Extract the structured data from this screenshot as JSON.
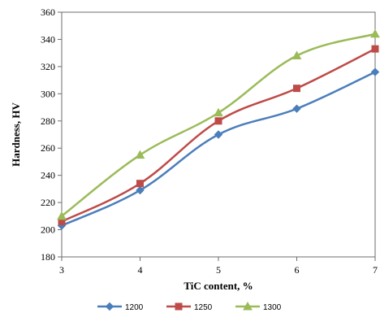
{
  "chart_data": {
    "type": "line",
    "x": [
      3,
      4,
      5,
      6,
      7
    ],
    "xlabel": "TiC content, %",
    "ylabel": "Hardness, HV",
    "xlim": [
      3,
      7
    ],
    "ylim": [
      180,
      360
    ],
    "x_ticks": [
      3,
      4,
      5,
      6,
      7
    ],
    "y_ticks": [
      180,
      200,
      220,
      240,
      260,
      280,
      300,
      320,
      340,
      360
    ],
    "grid": false,
    "smooth": true,
    "legend_position": "bottom",
    "series": [
      {
        "name": "1200",
        "values": [
          203,
          229,
          270,
          289,
          316
        ],
        "color": "#4a7ebb",
        "marker": "diamond"
      },
      {
        "name": "1250",
        "values": [
          206,
          234,
          280,
          304,
          333
        ],
        "color": "#be4b48",
        "marker": "square"
      },
      {
        "name": "1300",
        "values": [
          210,
          255,
          286,
          328,
          344
        ],
        "color": "#9bbb59",
        "marker": "triangle"
      }
    ]
  }
}
